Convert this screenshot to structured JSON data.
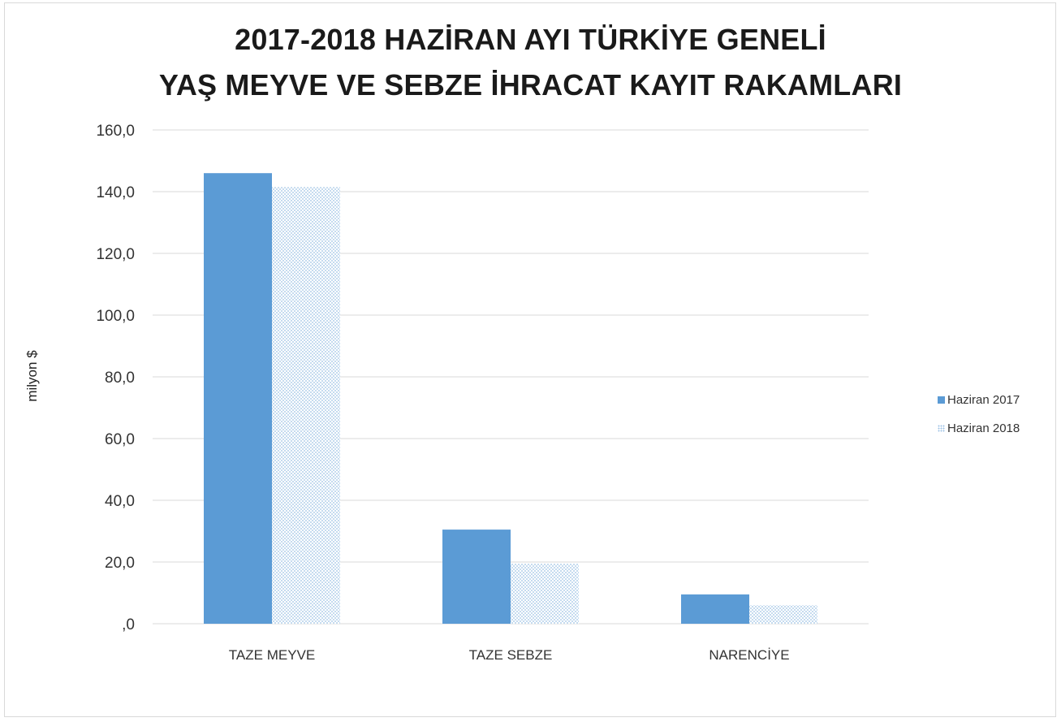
{
  "chart_data": {
    "type": "bar",
    "title_line1": "2017-2018 HAZİRAN AYI TÜRKİYE GENELİ",
    "title_line2": "YAŞ MEYVE VE SEBZE İHRACAT KAYIT RAKAMLARI",
    "xlabel": "",
    "ylabel": "milyon $",
    "categories": [
      "TAZE MEYVE",
      "TAZE SEBZE",
      "NARENCİYE"
    ],
    "series": [
      {
        "name": "Haziran 2017",
        "values": [
          146.0,
          30.5,
          9.5
        ],
        "color": "#5b9bd5",
        "fill": "solid"
      },
      {
        "name": "Haziran 2018",
        "values": [
          141.5,
          19.5,
          6.0
        ],
        "color": "#9cc2e5",
        "fill": "dotted"
      }
    ],
    "ylim": [
      0,
      160
    ],
    "yticks": [
      0,
      20,
      40,
      60,
      80,
      100,
      120,
      140,
      160
    ],
    "ytick_labels": [
      ",0",
      "20,0",
      "40,0",
      "60,0",
      "80,0",
      "100,0",
      "120,0",
      "140,0",
      "160,0"
    ],
    "grid": true,
    "legend_position": "right"
  }
}
